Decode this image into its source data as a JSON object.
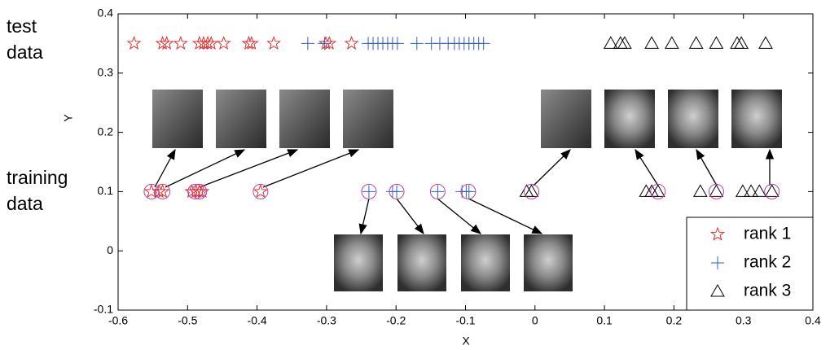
{
  "chart_data": {
    "type": "scatter",
    "xlabel": "X",
    "ylabel": "Y",
    "annotations": [
      "test",
      "data",
      "training",
      "data"
    ],
    "xlim": [
      -0.6,
      0.4
    ],
    "ylim": [
      -0.1,
      0.4
    ],
    "xticks": [
      -0.6,
      -0.5,
      -0.4,
      -0.3,
      -0.2,
      -0.1,
      0,
      0.1,
      0.2,
      0.3,
      0.4
    ],
    "yticks": [
      -0.1,
      0,
      0.1,
      0.2,
      0.3,
      0.4
    ],
    "legend": "lower right",
    "series": [
      {
        "name": "rank 1",
        "marker": "star",
        "color": "#e03030",
        "x": [
          -0.577,
          -0.536,
          -0.53,
          -0.51,
          -0.483,
          -0.477,
          -0.471,
          -0.466,
          -0.448,
          -0.412,
          -0.408,
          -0.376,
          -0.301,
          -0.296,
          -0.264,
          -0.552,
          -0.541,
          -0.536,
          -0.494,
          -0.488,
          -0.483,
          -0.479,
          -0.395
        ],
        "y": [
          0.35,
          0.35,
          0.35,
          0.35,
          0.35,
          0.35,
          0.35,
          0.35,
          0.35,
          0.35,
          0.35,
          0.35,
          0.35,
          0.35,
          0.35,
          0.1,
          0.1,
          0.1,
          0.1,
          0.1,
          0.1,
          0.1,
          0.1
        ]
      },
      {
        "name": "rank 2",
        "marker": "plus",
        "color": "#3060c0",
        "x": [
          -0.327,
          -0.303,
          -0.24,
          -0.233,
          -0.226,
          -0.219,
          -0.212,
          -0.205,
          -0.198,
          -0.17,
          -0.149,
          -0.137,
          -0.125,
          -0.116,
          -0.109,
          -0.102,
          -0.095,
          -0.088,
          -0.081,
          -0.074,
          -0.239,
          -0.205,
          -0.199,
          -0.14,
          -0.105,
          -0.099,
          -0.095
        ],
        "y": [
          0.35,
          0.35,
          0.35,
          0.35,
          0.35,
          0.35,
          0.35,
          0.35,
          0.35,
          0.35,
          0.35,
          0.35,
          0.35,
          0.35,
          0.35,
          0.35,
          0.35,
          0.35,
          0.35,
          0.35,
          0.1,
          0.1,
          0.1,
          0.1,
          0.1,
          0.1,
          0.1
        ]
      },
      {
        "name": "rank 3",
        "marker": "triangle",
        "color": "#000000",
        "x": [
          0.109,
          0.123,
          0.129,
          0.168,
          0.197,
          0.232,
          0.261,
          0.291,
          0.297,
          0.332,
          -0.012,
          -0.005,
          0.16,
          0.168,
          0.177,
          0.238,
          0.261,
          0.299,
          0.311,
          0.323,
          0.341
        ],
        "y": [
          0.35,
          0.35,
          0.35,
          0.35,
          0.35,
          0.35,
          0.35,
          0.35,
          0.35,
          0.35,
          0.1,
          0.1,
          0.1,
          0.1,
          0.1,
          0.1,
          0.1,
          0.1,
          0.1,
          0.1,
          0.1
        ]
      },
      {
        "marker": "circle",
        "color": "#c040a0",
        "x": [
          -0.552,
          -0.536,
          -0.489,
          -0.483,
          -0.395,
          -0.239,
          -0.199,
          -0.14,
          -0.096,
          -0.005,
          0.177,
          0.261,
          0.341
        ],
        "y": [
          0.1,
          0.1,
          0.1,
          0.1,
          0.1,
          0.1,
          0.1,
          0.1,
          0.1,
          0.1,
          0.1,
          0.1,
          0.1
        ]
      }
    ]
  }
}
